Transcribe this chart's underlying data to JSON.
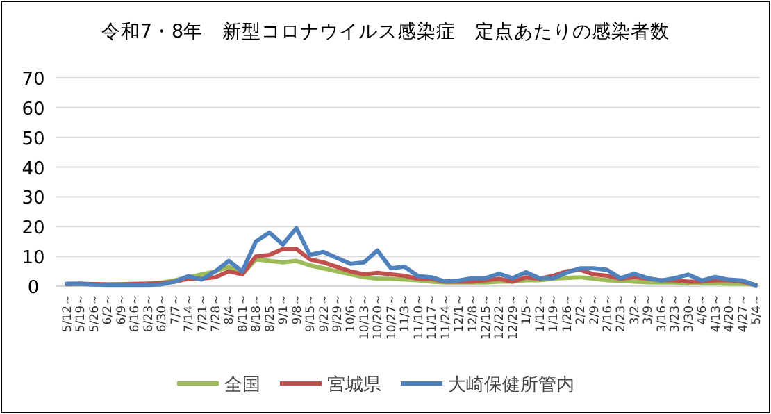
{
  "chart_data": {
    "type": "line",
    "title": "令和7・8年　新型コロナウイルス感染症　定点あたりの感染者数",
    "categories": [
      "5/12～",
      "5/19～",
      "5/26～",
      "6/2～",
      "6/9～",
      "6/16～",
      "6/23～",
      "6/30～",
      "7/7～",
      "7/14～",
      "7/21～",
      "7/28～",
      "8/4～",
      "8/11～",
      "8/18～",
      "8/25～",
      "9/1～",
      "9/8～",
      "9/15～",
      "9/22～",
      "9/29～",
      "10/6～",
      "10/13～",
      "10/20～",
      "10/27～",
      "11/3～",
      "11/10～",
      "11/17～",
      "11/24～",
      "12/1～",
      "12/8～",
      "12/15～",
      "12/22～",
      "12/29～",
      "1/5～",
      "1/12～",
      "1/19～",
      "1/26～",
      "2/2～",
      "2/9～",
      "2/16～",
      "2/23～",
      "3/2～",
      "3/9～",
      "3/16～",
      "3/23～",
      "3/30～",
      "4/6～",
      "4/13～",
      "4/20～",
      "4/27～",
      "5/4～"
    ],
    "series": [
      {
        "name": "全国",
        "color": "#9bbb59",
        "values": [
          0.6,
          0.7,
          0.6,
          0.6,
          0.7,
          0.8,
          0.9,
          1.2,
          2,
          3,
          4,
          5,
          6.5,
          4,
          9,
          8.5,
          8,
          8.5,
          7,
          6,
          5,
          4,
          3,
          2.5,
          2.5,
          2.2,
          2,
          1.5,
          1.2,
          1.2,
          1.2,
          1.2,
          1.5,
          1.5,
          2,
          2,
          2.5,
          2.8,
          3,
          2.5,
          2,
          1.8,
          1.5,
          1.3,
          1.2,
          1.2,
          1,
          1,
          1,
          0.8,
          0.8,
          0.5
        ]
      },
      {
        "name": "宮城県",
        "color": "#c0504d",
        "values": [
          0.7,
          0.8,
          0.7,
          0.6,
          0.6,
          0.7,
          0.8,
          1,
          1.5,
          2.5,
          2.5,
          3,
          5,
          4,
          10,
          10.5,
          12.5,
          12.5,
          9,
          8,
          6.5,
          5,
          4,
          4.5,
          4,
          3.5,
          2.5,
          2.5,
          1.5,
          1.5,
          1.5,
          2,
          2.5,
          1.5,
          3,
          2.5,
          3.5,
          5,
          5.5,
          4,
          3.5,
          2.5,
          3,
          2.5,
          2,
          2,
          1.5,
          1.5,
          2,
          2,
          1.5,
          0.3
        ]
      },
      {
        "name": "大崎保健所管内",
        "color": "#4f81bd",
        "values": [
          0.8,
          0.8,
          0.5,
          0.4,
          0.4,
          0.4,
          0.4,
          0.6,
          1.5,
          3.4,
          2.2,
          5,
          8.5,
          5,
          15,
          18,
          14,
          19.5,
          10.5,
          11.5,
          9.5,
          7.5,
          8,
          12,
          6,
          6.6,
          3.4,
          3,
          1.6,
          1.9,
          2.7,
          2.7,
          4.2,
          2.7,
          4.7,
          2.7,
          2.7,
          4.5,
          6,
          6,
          5.5,
          2.7,
          4.2,
          2.7,
          1.9,
          2.7,
          3.9,
          1.9,
          3.1,
          2.2,
          1.9,
          0.3
        ]
      }
    ],
    "ylim": [
      0,
      70
    ],
    "yticks": [
      0,
      10,
      20,
      30,
      40,
      50,
      60,
      70
    ],
    "grid": "y",
    "legend": "bottom",
    "marker": "none",
    "line_style": "solid"
  }
}
